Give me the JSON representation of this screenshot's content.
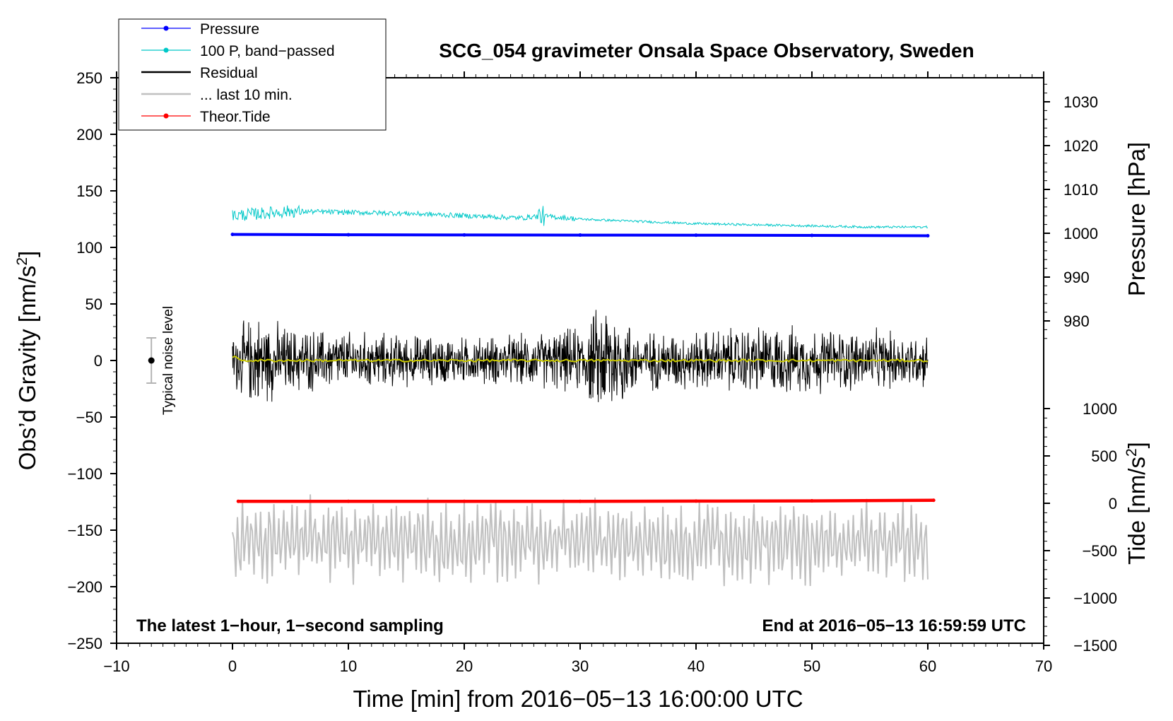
{
  "chart_data": {
    "type": "line",
    "title": "SCG_054 gravimeter Onsala Space Observatory, Sweden",
    "xlabel": "Time [min] from 2016−05−13 16:00:00 UTC",
    "ylabel": "Obs’d Gravity [nm/s²]",
    "ylabel_main": "Obs’d Gravity [nm/s",
    "ylabel_sup": "2",
    "ylabel_tail": "]",
    "y2label_pressure": "Pressure [hPa]",
    "y2label_tide": "Tide [nm/s²]",
    "y2label_tide_main": "Tide [nm/s",
    "y2label_tide_sup": "2",
    "y2label_tide_tail": "]",
    "xlim": [
      -10,
      70
    ],
    "ylim": [
      -250,
      250
    ],
    "x_ticks": [
      "−10",
      "0",
      "10",
      "20",
      "30",
      "40",
      "50",
      "60",
      "70"
    ],
    "y_ticks": [
      "250",
      "200",
      "150",
      "100",
      "50",
      "0",
      "−50",
      "−100",
      "−150",
      "−200",
      "−250"
    ],
    "pressure_axis": {
      "range_gravity": [
        150,
        250
      ],
      "ticks": [
        "1030",
        "1020",
        "1010",
        "1000",
        "990",
        "980"
      ],
      "tick_values": [
        1030,
        1020,
        1010,
        1000,
        990,
        980
      ]
    },
    "tide_axis": {
      "ticks": [
        "1000",
        "500",
        "0",
        "−500",
        "−1000",
        "−1500"
      ],
      "tick_values": [
        1000,
        500,
        0,
        -500,
        -1000,
        -1500
      ]
    },
    "legend": [
      {
        "label": "Pressure",
        "color": "#0000ff",
        "style": "line-dot"
      },
      {
        "label": "100 P, band−passed",
        "color": "#00c8c8",
        "style": "line-dot"
      },
      {
        "label": "Residual",
        "color": "#000000",
        "style": "line"
      },
      {
        "label": "... last 10 min.",
        "color": "#c0c0c0",
        "style": "line"
      },
      {
        "label": "Theor.Tide",
        "color": "#ff0000",
        "style": "line-dot"
      }
    ],
    "annotations": {
      "left": "The latest 1−hour, 1−second sampling",
      "right": "End at 2016−05−13 16:59:59 UTC",
      "noise": "Typical noise level"
    },
    "noise_bar": {
      "x": -7,
      "center": 0,
      "half_range": 20
    },
    "series": [
      {
        "name": "Pressure",
        "color": "#0000ff",
        "x": [
          0,
          10,
          20,
          30,
          40,
          50,
          60
        ],
        "values": [
          111.5,
          111.2,
          111.0,
          110.9,
          110.8,
          110.6,
          110.3
        ]
      },
      {
        "name": "100 P, band−passed",
        "color": "#00c8c8",
        "x": [
          0,
          5,
          10,
          15,
          20,
          25,
          26.5,
          30,
          35,
          40,
          45,
          50,
          55,
          60
        ],
        "values": [
          128,
          132,
          131,
          130,
          128,
          126,
          128,
          125,
          123,
          121,
          120,
          119,
          118,
          118
        ]
      },
      {
        "name": "Residual",
        "color": "#000000",
        "x": [
          0,
          60
        ],
        "values": [
          0,
          0
        ],
        "amplitude_envelope": {
          "x": [
            0,
            2,
            5,
            10,
            15,
            20,
            25,
            30,
            32.5,
            35,
            40,
            45,
            50,
            55,
            60
          ],
          "values": [
            25,
            40,
            28,
            25,
            22,
            20,
            22,
            28,
            55,
            25,
            25,
            30,
            28,
            26,
            22
          ]
        }
      },
      {
        "name": "Residual smoothed",
        "color": "#c8c800",
        "x": [
          0,
          60
        ],
        "values": [
          0,
          0
        ]
      },
      {
        "name": "... last 10 min.",
        "color": "#c0c0c0",
        "x": [
          0,
          60
        ],
        "values": [
          -160,
          -160
        ],
        "amplitude": 30
      },
      {
        "name": "Theor.Tide",
        "color": "#ff0000",
        "x": [
          0.5,
          10,
          20,
          30,
          40,
          50,
          60.5
        ],
        "values": [
          -124.5,
          -124.5,
          -124.5,
          -124.5,
          -124.3,
          -124.1,
          -123.6
        ]
      }
    ]
  }
}
